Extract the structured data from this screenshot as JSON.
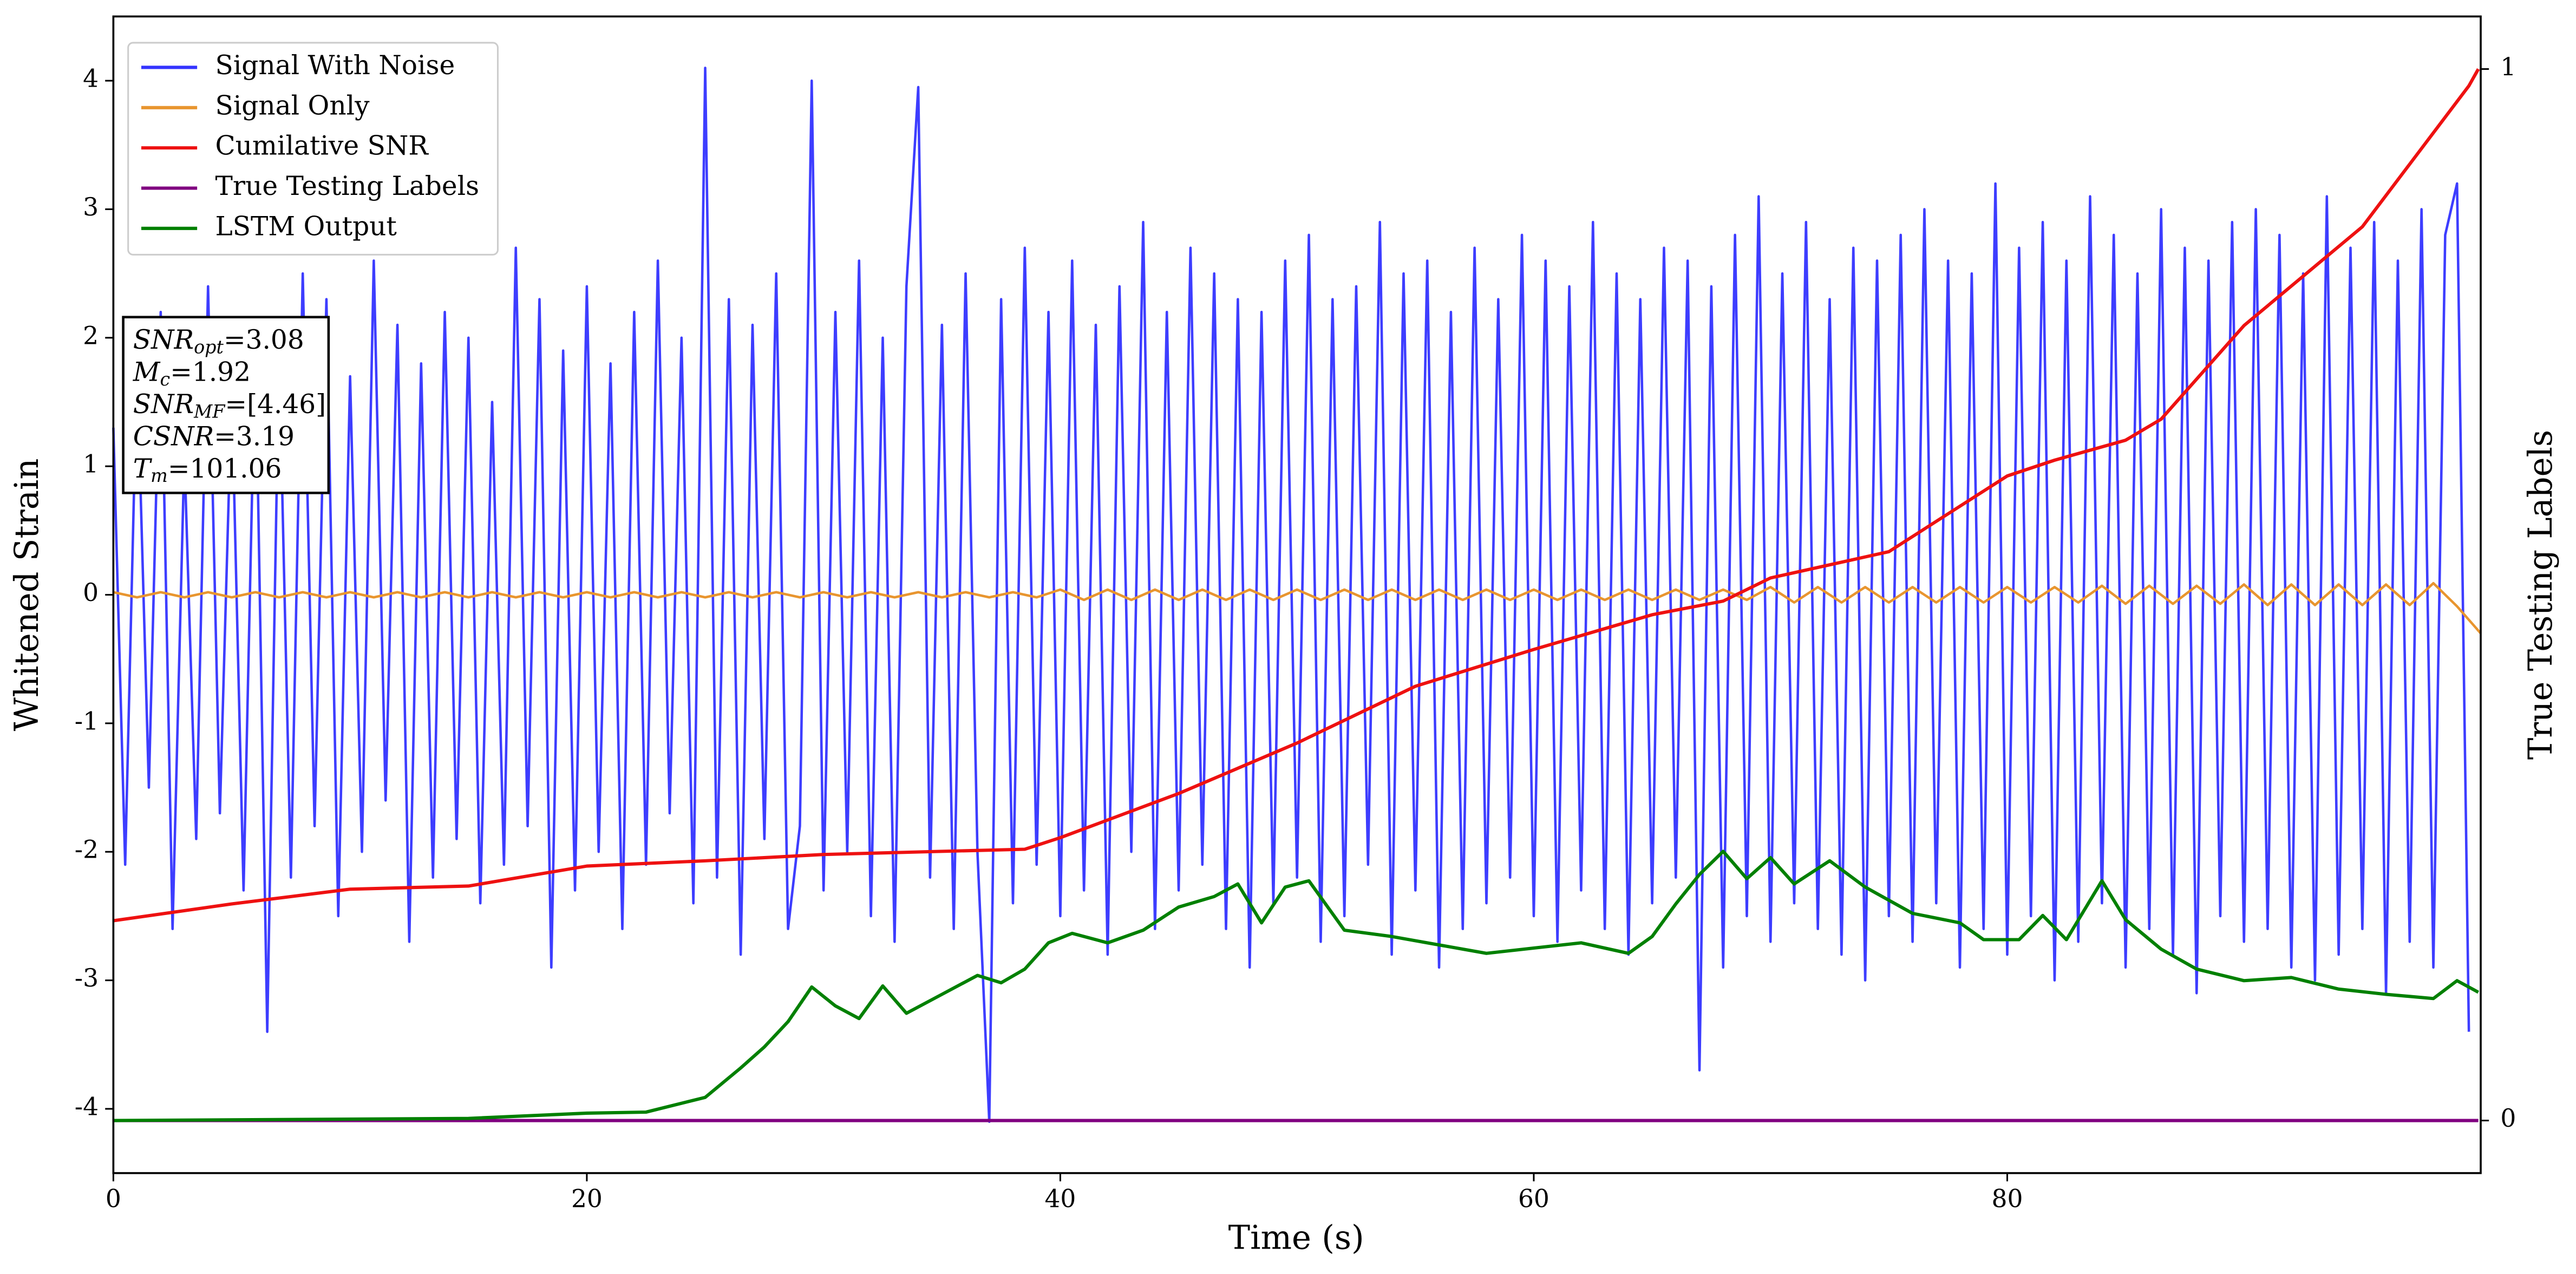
{
  "chart_data": {
    "type": "line",
    "xlabel": "Time (s)",
    "ylabel": "Whitened Strain",
    "y2label": "True Testing Labels",
    "xlim": [
      0,
      100
    ],
    "ylim": [
      -4.5,
      4.5
    ],
    "y2lim": [
      -0.05,
      1.05
    ],
    "xticks": [
      0,
      20,
      40,
      60,
      80
    ],
    "yticks": [
      -4,
      -3,
      -2,
      -1,
      0,
      1,
      2,
      3,
      4
    ],
    "y2ticks": [
      0,
      1
    ],
    "legend": "upper left",
    "grid": false,
    "annotations": [
      {
        "main": "SNR",
        "sub": "opt",
        "rest": "=3.08"
      },
      {
        "main": "M",
        "sub": "c",
        "rest": "=1.92"
      },
      {
        "main": "SNR",
        "sub": "MF",
        "rest": "=[4.46]"
      },
      {
        "main": "CSNR",
        "sub": null,
        "rest": "=3.19"
      },
      {
        "main": "T",
        "sub": "m",
        "rest": "=101.06"
      }
    ],
    "series": [
      {
        "name": "Signal With Noise",
        "color": "#3333ff",
        "axis": "y",
        "x": [
          0,
          0.5,
          1,
          1.5,
          2,
          2.5,
          3,
          3.5,
          4,
          4.5,
          5,
          5.5,
          6,
          6.5,
          7,
          7.5,
          8,
          8.5,
          9,
          9.5,
          10,
          10.5,
          11,
          11.5,
          12,
          12.5,
          13,
          13.5,
          14,
          14.5,
          15,
          15.5,
          16,
          16.5,
          17,
          17.5,
          18,
          18.5,
          19,
          19.5,
          20,
          20.5,
          21,
          21.5,
          22,
          22.5,
          23,
          23.5,
          24,
          24.5,
          25,
          25.5,
          26,
          26.5,
          27,
          27.5,
          28,
          28.5,
          29,
          29.5,
          30,
          30.5,
          31,
          31.5,
          32,
          32.5,
          33,
          33.5,
          34,
          34.5,
          35,
          35.5,
          36,
          36.5,
          37,
          37.5,
          38,
          38.5,
          39,
          39.5,
          40,
          40.5,
          41,
          41.5,
          42,
          42.5,
          43,
          43.5,
          44,
          44.5,
          45,
          45.5,
          46,
          46.5,
          47,
          47.5,
          48,
          48.5,
          49,
          49.5,
          50,
          50.5,
          51,
          51.5,
          52,
          52.5,
          53,
          53.5,
          54,
          54.5,
          55,
          55.5,
          56,
          56.5,
          57,
          57.5,
          58,
          58.5,
          59,
          59.5,
          60,
          60.5,
          61,
          61.5,
          62,
          62.5,
          63,
          63.5,
          64,
          64.5,
          65,
          65.5,
          66,
          66.5,
          67,
          67.5,
          68,
          68.5,
          69,
          69.5,
          70,
          70.5,
          71,
          71.5,
          72,
          72.5,
          73,
          73.5,
          74,
          74.5,
          75,
          75.5,
          76,
          76.5,
          77,
          77.5,
          78,
          78.5,
          79,
          79.5,
          80,
          80.5,
          81,
          81.5,
          82,
          82.5,
          83,
          83.5,
          84,
          84.5,
          85,
          85.5,
          86,
          86.5,
          87,
          87.5,
          88,
          88.5,
          89,
          89.5,
          90,
          90.5,
          91,
          91.5,
          92,
          92.5,
          93,
          93.5,
          94,
          94.5,
          95,
          95.5,
          96,
          96.5,
          97,
          97.5,
          98,
          98.5,
          99,
          99.5
        ],
        "values": [
          1.3,
          -2.1,
          1.8,
          -1.5,
          2.2,
          -2.6,
          1.1,
          -1.9,
          2.4,
          -1.7,
          1.6,
          -2.3,
          2.0,
          -3.4,
          1.9,
          -2.2,
          2.5,
          -1.8,
          2.3,
          -2.5,
          1.7,
          -2.0,
          2.6,
          -1.6,
          2.1,
          -2.7,
          1.8,
          -2.2,
          2.2,
          -1.9,
          2.0,
          -2.4,
          1.5,
          -2.1,
          2.7,
          -1.8,
          2.3,
          -2.9,
          1.9,
          -2.3,
          2.4,
          -2.0,
          1.8,
          -2.6,
          2.2,
          -2.1,
          2.6,
          -1.7,
          2.0,
          -2.4,
          4.1,
          -2.2,
          2.3,
          -2.8,
          2.1,
          -1.9,
          2.5,
          -2.6,
          -1.8,
          4.0,
          -2.3,
          2.2,
          -2.0,
          2.6,
          -2.5,
          2.0,
          -2.7,
          2.4,
          3.95,
          -2.2,
          2.1,
          -2.6,
          2.5,
          -2.0,
          -4.1,
          2.3,
          -2.4,
          2.7,
          -2.1,
          2.2,
          -2.5,
          2.6,
          -2.3,
          2.1,
          -2.8,
          2.4,
          -2.0,
          2.9,
          -2.6,
          2.2,
          -2.3,
          2.7,
          -2.1,
          2.5,
          -2.6,
          2.3,
          -2.9,
          2.2,
          -2.4,
          2.6,
          -2.2,
          2.8,
          -2.7,
          2.3,
          -2.5,
          2.4,
          -2.1,
          2.9,
          -2.8,
          2.5,
          -2.3,
          2.6,
          -2.9,
          2.2,
          -2.6,
          2.7,
          -2.4,
          2.3,
          -2.2,
          2.8,
          -2.5,
          2.6,
          -2.7,
          2.4,
          -2.3,
          2.9,
          -2.6,
          2.5,
          -2.8,
          2.3,
          -2.4,
          2.7,
          -2.2,
          2.6,
          -3.7,
          2.4,
          -2.9,
          2.8,
          -2.5,
          3.1,
          -2.7,
          2.5,
          -2.4,
          2.9,
          -2.6,
          2.3,
          -2.8,
          2.7,
          -3.0,
          2.6,
          -2.5,
          2.8,
          -2.7,
          3.0,
          -2.4,
          2.6,
          -2.9,
          2.5,
          -2.6,
          3.2,
          -2.8,
          2.7,
          -2.5,
          2.9,
          -3.0,
          2.6,
          -2.7,
          3.1,
          -2.4,
          2.8,
          -2.9,
          2.5,
          -2.6,
          3.0,
          -2.8,
          2.7,
          -3.1,
          2.6,
          -2.5,
          2.9,
          -2.7,
          3.0,
          -2.6,
          2.8,
          -2.9,
          2.5,
          -3.0,
          3.1,
          -2.8,
          2.7,
          -2.6,
          2.9,
          -3.1,
          2.6,
          -2.7,
          3.0,
          -2.9,
          2.8,
          3.2,
          -3.4
        ]
      },
      {
        "name": "Signal Only",
        "color": "#e8952f",
        "axis": "y",
        "x": [
          0,
          1,
          2,
          3,
          4,
          5,
          6,
          7,
          8,
          9,
          10,
          11,
          12,
          13,
          14,
          15,
          16,
          17,
          18,
          19,
          20,
          21,
          22,
          23,
          24,
          25,
          26,
          27,
          28,
          29,
          30,
          31,
          32,
          33,
          34,
          35,
          36,
          37,
          38,
          39,
          40,
          41,
          42,
          43,
          44,
          45,
          46,
          47,
          48,
          49,
          50,
          51,
          52,
          53,
          54,
          55,
          56,
          57,
          58,
          59,
          60,
          61,
          62,
          63,
          64,
          65,
          66,
          67,
          68,
          69,
          70,
          71,
          72,
          73,
          74,
          75,
          76,
          77,
          78,
          79,
          80,
          81,
          82,
          83,
          84,
          85,
          86,
          87,
          88,
          89,
          90,
          91,
          92,
          93,
          94,
          95,
          96,
          97,
          98,
          99,
          100
        ],
        "values": [
          0.02,
          -0.02,
          0.02,
          -0.02,
          0.02,
          -0.02,
          0.02,
          -0.02,
          0.02,
          -0.02,
          0.02,
          -0.02,
          0.02,
          -0.02,
          0.02,
          -0.02,
          0.02,
          -0.02,
          0.02,
          -0.02,
          0.02,
          -0.02,
          0.02,
          -0.02,
          0.02,
          -0.02,
          0.02,
          -0.02,
          0.02,
          -0.02,
          0.02,
          -0.02,
          0.02,
          -0.02,
          0.02,
          -0.02,
          0.02,
          -0.02,
          0.02,
          -0.02,
          0.04,
          -0.04,
          0.04,
          -0.04,
          0.04,
          -0.04,
          0.04,
          -0.04,
          0.04,
          -0.04,
          0.04,
          -0.04,
          0.04,
          -0.04,
          0.04,
          -0.04,
          0.04,
          -0.04,
          0.04,
          -0.04,
          0.04,
          -0.04,
          0.04,
          -0.04,
          0.04,
          -0.04,
          0.04,
          -0.04,
          0.04,
          -0.04,
          0.06,
          -0.06,
          0.06,
          -0.06,
          0.06,
          -0.06,
          0.06,
          -0.06,
          0.06,
          -0.06,
          0.06,
          -0.06,
          0.06,
          -0.06,
          0.07,
          -0.07,
          0.07,
          -0.07,
          0.07,
          -0.07,
          0.08,
          -0.08,
          0.08,
          -0.08,
          0.08,
          -0.08,
          0.08,
          -0.08,
          0.09,
          -0.09,
          -0.3
        ]
      },
      {
        "name": "Cumilative SNR",
        "color": "#ee1111",
        "axis": "y2",
        "x": [
          0,
          5,
          10,
          15,
          20,
          25,
          30,
          35,
          38.5,
          40,
          45,
          50,
          55,
          60,
          65,
          68,
          70,
          75,
          80,
          82,
          85,
          86.5,
          90,
          95,
          99.5,
          99.9
        ],
        "values": [
          0.19,
          0.206,
          0.22,
          0.223,
          0.242,
          0.247,
          0.253,
          0.256,
          0.258,
          0.269,
          0.311,
          0.359,
          0.413,
          0.448,
          0.481,
          0.494,
          0.516,
          0.541,
          0.613,
          0.628,
          0.647,
          0.667,
          0.756,
          0.85,
          0.984,
          1.0
        ]
      },
      {
        "name": "True Testing Labels",
        "color": "purple",
        "axis": "y2",
        "x": [
          0,
          99.9
        ],
        "values": [
          0,
          0
        ]
      },
      {
        "name": "LSTM Output",
        "color": "green",
        "axis": "y2",
        "x": [
          0,
          15,
          20,
          22.5,
          25,
          26.5,
          27.5,
          28.5,
          29.5,
          30.5,
          31.5,
          32.5,
          33.5,
          35,
          36.5,
          37.5,
          38.5,
          39.5,
          40.5,
          42,
          43.5,
          45,
          46.5,
          47.5,
          48.5,
          49.5,
          50.5,
          52,
          54,
          56,
          58,
          60,
          62,
          64,
          65,
          66,
          67,
          68,
          69,
          70,
          71,
          72.5,
          74,
          76,
          78,
          79,
          80.5,
          81.5,
          82.5,
          84,
          85,
          86.5,
          88,
          90,
          92,
          94,
          96,
          98,
          99,
          99.9
        ],
        "values": [
          0,
          0.002,
          0.007,
          0.008,
          0.022,
          0.05,
          0.07,
          0.094,
          0.127,
          0.109,
          0.097,
          0.128,
          0.102,
          0.12,
          0.138,
          0.131,
          0.144,
          0.169,
          0.178,
          0.169,
          0.181,
          0.203,
          0.213,
          0.225,
          0.188,
          0.222,
          0.228,
          0.181,
          0.175,
          0.167,
          0.159,
          0.164,
          0.169,
          0.159,
          0.175,
          0.206,
          0.234,
          0.256,
          0.23,
          0.25,
          0.225,
          0.247,
          0.222,
          0.197,
          0.188,
          0.172,
          0.172,
          0.195,
          0.172,
          0.228,
          0.191,
          0.163,
          0.144,
          0.133,
          0.136,
          0.125,
          0.12,
          0.116,
          0.133,
          0.122
        ]
      }
    ]
  }
}
